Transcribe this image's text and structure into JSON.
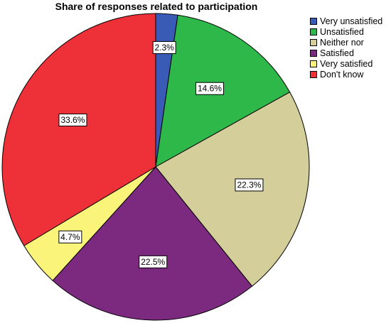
{
  "chart_data": {
    "type": "pie",
    "title": "Share of responses related to participation",
    "slices": [
      {
        "name": "Very unsatisfied",
        "value": 2.3,
        "label": "2.3%",
        "color": "#3A5BB5"
      },
      {
        "name": "Unsatisfied",
        "value": 14.6,
        "label": "14.6%",
        "color": "#2EB84A"
      },
      {
        "name": "Neither nor",
        "value": 22.3,
        "label": "22.3%",
        "color": "#D3CE9A"
      },
      {
        "name": "Satisfied",
        "value": 22.5,
        "label": "22.5%",
        "color": "#7B2A80"
      },
      {
        "name": "Very satisfied",
        "value": 4.7,
        "label": "4.7%",
        "color": "#FAF57A"
      },
      {
        "name": "Don't know",
        "value": 33.6,
        "label": "33.6%",
        "color": "#EE3138"
      }
    ],
    "legend_position": "top-right"
  }
}
